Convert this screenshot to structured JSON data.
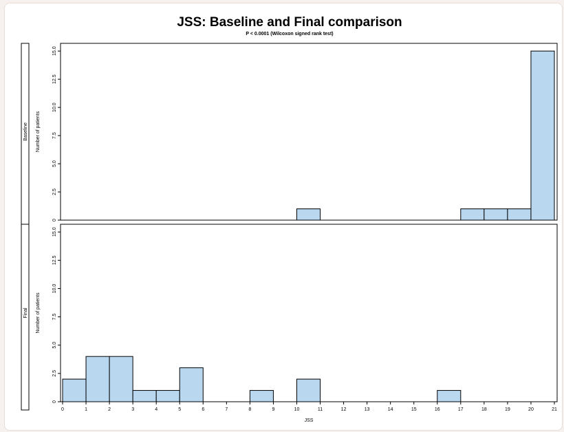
{
  "chart_data": {
    "type": "bar",
    "title": "JSS: Baseline and Final comparison",
    "subtitle": "P < 0.0001 (Wilcoxon signed rank test)",
    "xlabel": "JSS",
    "ylabel": "Number of patients",
    "xlim": [
      0,
      21
    ],
    "ylim": [
      0,
      15.5
    ],
    "x_ticks": [
      0,
      1,
      2,
      3,
      4,
      5,
      6,
      7,
      8,
      9,
      10,
      11,
      12,
      13,
      14,
      15,
      16,
      17,
      18,
      19,
      20,
      21
    ],
    "y_ticks": [
      "0",
      "2.5",
      "5.0",
      "7.5",
      "10.0",
      "12.5",
      "15.0"
    ],
    "y_tick_values": [
      0,
      2.5,
      5.0,
      7.5,
      10.0,
      12.5,
      15.0
    ],
    "bar_color": "#b9d7ef",
    "panels": [
      {
        "name": "Baseline",
        "bins": [
          {
            "x0": 10,
            "x1": 11,
            "count": 1
          },
          {
            "x0": 17,
            "x1": 18,
            "count": 1
          },
          {
            "x0": 18,
            "x1": 19,
            "count": 1
          },
          {
            "x0": 19,
            "x1": 20,
            "count": 1
          },
          {
            "x0": 20,
            "x1": 21,
            "count": 15
          }
        ]
      },
      {
        "name": "Final",
        "bins": [
          {
            "x0": 0,
            "x1": 1,
            "count": 2
          },
          {
            "x0": 1,
            "x1": 2,
            "count": 4
          },
          {
            "x0": 2,
            "x1": 3,
            "count": 4
          },
          {
            "x0": 3,
            "x1": 4,
            "count": 1
          },
          {
            "x0": 4,
            "x1": 5,
            "count": 1
          },
          {
            "x0": 5,
            "x1": 6,
            "count": 3
          },
          {
            "x0": 8,
            "x1": 9,
            "count": 1
          },
          {
            "x0": 10,
            "x1": 11,
            "count": 2
          },
          {
            "x0": 16,
            "x1": 17,
            "count": 1
          }
        ]
      }
    ]
  }
}
